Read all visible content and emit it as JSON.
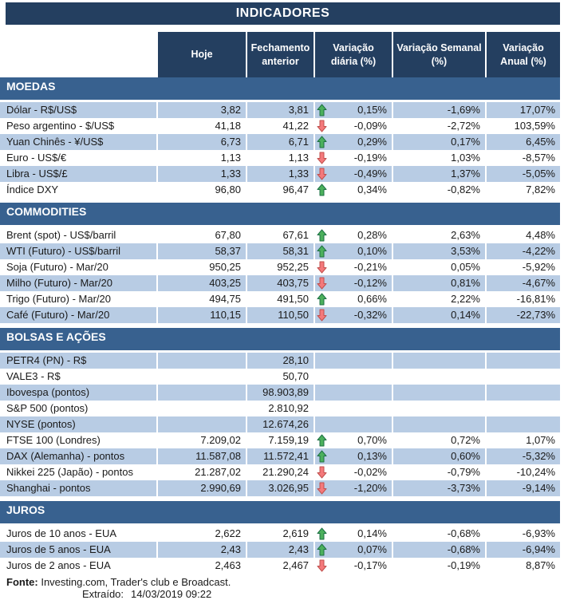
{
  "title": "INDICADORES",
  "columns": [
    "Hoje",
    "Fechamento anterior",
    "Variação diária (%)",
    "Variação Semanal (%)",
    "Variação Anual (%)"
  ],
  "sections": [
    {
      "name": "MOEDAS",
      "rows": [
        {
          "label": "Dólar - R$/US$",
          "hoje": "3,82",
          "fechamento": "3,81",
          "arrow": "up",
          "var_diaria": "0,15%",
          "var_semanal": "-1,69%",
          "var_anual": "17,07%"
        },
        {
          "label": "Peso argentino - $/US$",
          "hoje": "41,18",
          "fechamento": "41,22",
          "arrow": "down",
          "var_diaria": "-0,09%",
          "var_semanal": "-2,72%",
          "var_anual": "103,59%"
        },
        {
          "label": "Yuan Chinês - ¥/US$",
          "hoje": "6,73",
          "fechamento": "6,71",
          "arrow": "up",
          "var_diaria": "0,29%",
          "var_semanal": "0,17%",
          "var_anual": "6,45%"
        },
        {
          "label": "Euro - US$/€",
          "hoje": "1,13",
          "fechamento": "1,13",
          "arrow": "down",
          "var_diaria": "-0,19%",
          "var_semanal": "1,03%",
          "var_anual": "-8,57%"
        },
        {
          "label": "Libra - US$/£",
          "hoje": "1,33",
          "fechamento": "1,33",
          "arrow": "down",
          "var_diaria": "-0,49%",
          "var_semanal": "1,37%",
          "var_anual": "-5,05%"
        },
        {
          "label": "Índice DXY",
          "hoje": "96,80",
          "fechamento": "96,47",
          "arrow": "up",
          "var_diaria": "0,34%",
          "var_semanal": "-0,82%",
          "var_anual": "7,82%"
        }
      ]
    },
    {
      "name": "COMMODITIES",
      "rows": [
        {
          "label": "Brent (spot) - US$/barril",
          "hoje": "67,80",
          "fechamento": "67,61",
          "arrow": "up",
          "var_diaria": "0,28%",
          "var_semanal": "2,63%",
          "var_anual": "4,48%"
        },
        {
          "label": "WTI (Futuro) - US$/barril",
          "hoje": "58,37",
          "fechamento": "58,31",
          "arrow": "up",
          "var_diaria": "0,10%",
          "var_semanal": "3,53%",
          "var_anual": "-4,22%"
        },
        {
          "label": "Soja (Futuro) - Mar/20",
          "hoje": "950,25",
          "fechamento": "952,25",
          "arrow": "down",
          "var_diaria": "-0,21%",
          "var_semanal": "0,05%",
          "var_anual": "-5,92%"
        },
        {
          "label": "Milho (Futuro) - Mar/20",
          "hoje": "403,25",
          "fechamento": "403,75",
          "arrow": "down",
          "var_diaria": "-0,12%",
          "var_semanal": "0,81%",
          "var_anual": "-4,67%"
        },
        {
          "label": "Trigo (Futuro) - Mar/20",
          "hoje": "494,75",
          "fechamento": "491,50",
          "arrow": "up",
          "var_diaria": "0,66%",
          "var_semanal": "2,22%",
          "var_anual": "-16,81%"
        },
        {
          "label": "Café (Futuro) - Mar/20",
          "hoje": "110,15",
          "fechamento": "110,50",
          "arrow": "down",
          "var_diaria": "-0,32%",
          "var_semanal": "0,14%",
          "var_anual": "-22,73%"
        }
      ]
    },
    {
      "name": "BOLSAS E AÇÕES",
      "rows": [
        {
          "label": "PETR4 (PN) - R$",
          "hoje": "",
          "fechamento": "28,10",
          "arrow": null,
          "var_diaria": "",
          "var_semanal": "",
          "var_anual": ""
        },
        {
          "label": "VALE3 - R$",
          "hoje": "",
          "fechamento": "50,70",
          "arrow": null,
          "var_diaria": "",
          "var_semanal": "",
          "var_anual": ""
        },
        {
          "label": "Ibovespa (pontos)",
          "hoje": "",
          "fechamento": "98.903,89",
          "arrow": null,
          "var_diaria": "",
          "var_semanal": "",
          "var_anual": ""
        },
        {
          "label": "S&P 500 (pontos)",
          "hoje": "",
          "fechamento": "2.810,92",
          "arrow": null,
          "var_diaria": "",
          "var_semanal": "",
          "var_anual": ""
        },
        {
          "label": "NYSE (pontos)",
          "hoje": "",
          "fechamento": "12.674,26",
          "arrow": null,
          "var_diaria": "",
          "var_semanal": "",
          "var_anual": ""
        },
        {
          "label": "FTSE 100 (Londres)",
          "hoje": "7.209,02",
          "fechamento": "7.159,19",
          "arrow": "up",
          "var_diaria": "0,70%",
          "var_semanal": "0,72%",
          "var_anual": "1,07%"
        },
        {
          "label": "DAX (Alemanha) - pontos",
          "hoje": "11.587,08",
          "fechamento": "11.572,41",
          "arrow": "up",
          "var_diaria": "0,13%",
          "var_semanal": "0,60%",
          "var_anual": "-5,32%"
        },
        {
          "label": "Nikkei 225 (Japão) - pontos",
          "hoje": "21.287,02",
          "fechamento": "21.290,24",
          "arrow": "down",
          "var_diaria": "-0,02%",
          "var_semanal": "-0,79%",
          "var_anual": "-10,24%"
        },
        {
          "label": "Shanghai - pontos",
          "hoje": "2.990,69",
          "fechamento": "3.026,95",
          "arrow": "down",
          "var_diaria": "-1,20%",
          "var_semanal": "-3,73%",
          "var_anual": "-9,14%"
        }
      ]
    },
    {
      "name": "JUROS",
      "rows": [
        {
          "label": "Juros de 10 anos - EUA",
          "hoje": "2,622",
          "fechamento": "2,619",
          "arrow": "up",
          "var_diaria": "0,14%",
          "var_semanal": "-0,68%",
          "var_anual": "-6,93%"
        },
        {
          "label": "Juros de 5 anos - EUA",
          "hoje": "2,43",
          "fechamento": "2,43",
          "arrow": "up",
          "var_diaria": "0,07%",
          "var_semanal": "-0,68%",
          "var_anual": "-6,94%"
        },
        {
          "label": "Juros de 2 anos - EUA",
          "hoje": "2,463",
          "fechamento": "2,467",
          "arrow": "down",
          "var_diaria": "-0,17%",
          "var_semanal": "-0,19%",
          "var_anual": "8,87%"
        }
      ]
    }
  ],
  "footer": {
    "fonte_label": "Fonte:",
    "fonte_text": " Investing.com, Trader's club e Broadcast.",
    "extraido_label": "Extraído:",
    "extraido_value": "14/03/2019 09:22"
  },
  "colors": {
    "navy_header": "#243F60",
    "section_blue": "#38618F",
    "row_shaded": "#B8CCE4",
    "arrow_up_fill": "#4CB05C",
    "arrow_up_stroke": "#1E7145",
    "arrow_down_fill": "#F4797B",
    "arrow_down_stroke": "#C0504D",
    "text_dark": "#1A1A1A"
  },
  "icons": {
    "up_arrow": "up-arrow-icon",
    "down_arrow": "down-arrow-icon"
  }
}
